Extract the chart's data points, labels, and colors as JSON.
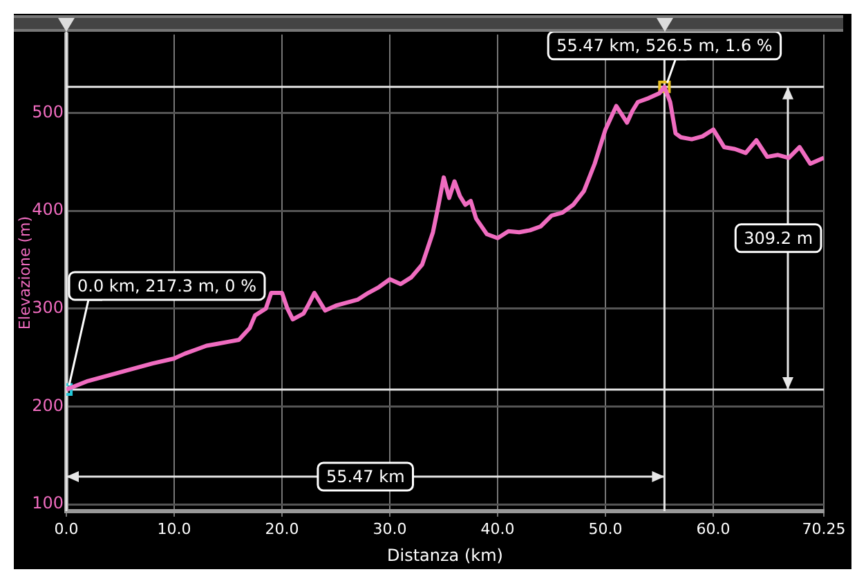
{
  "chart_data": {
    "type": "line",
    "xlabel": "Distanza (km)",
    "ylabel": "Elevazione (m)",
    "xlim": [
      0,
      70.25
    ],
    "ylim": [
      93,
      580
    ],
    "xticks": [
      {
        "value": 0,
        "label": "0.0"
      },
      {
        "value": 10,
        "label": "10.0"
      },
      {
        "value": 20,
        "label": "20.0"
      },
      {
        "value": 30,
        "label": "30.0"
      },
      {
        "value": 40,
        "label": "40.0"
      },
      {
        "value": 50,
        "label": "50.0"
      },
      {
        "value": 60,
        "label": "60.0"
      },
      70.25
    ],
    "yticks": [
      100,
      200,
      300,
      400,
      500
    ],
    "grid": true,
    "legend": false,
    "marker": "none",
    "line_style": "solid",
    "series": [
      {
        "color": "#f06cc0",
        "x": [
          0,
          2,
          4,
          6,
          8,
          10,
          11,
          12,
          13,
          14,
          15,
          16,
          17,
          17.5,
          18.5,
          19,
          20,
          20.5,
          21,
          22,
          22.5,
          23,
          24,
          25,
          26,
          27,
          28,
          29,
          30,
          31,
          32,
          33,
          34,
          34.5,
          35,
          35.5,
          36,
          36.5,
          37,
          37.5,
          38,
          39,
          40,
          41,
          42,
          43,
          44,
          45,
          46,
          47,
          48,
          49,
          50,
          51,
          52,
          52.5,
          53,
          54,
          55,
          55.47,
          56,
          56.5,
          57,
          58,
          59,
          60,
          61,
          62,
          63,
          64,
          65,
          66,
          67,
          68,
          69,
          70.25
        ],
        "values": [
          217.3,
          226,
          232,
          238,
          244,
          249,
          254,
          258,
          262,
          264,
          266,
          268,
          280,
          293,
          300,
          316,
          316,
          300,
          289,
          295,
          305,
          316,
          298,
          303,
          306,
          309,
          316,
          322,
          330,
          325,
          332,
          345,
          378,
          405,
          434,
          413,
          430,
          415,
          406,
          410,
          392,
          376,
          372,
          379,
          378,
          380,
          384,
          395,
          398,
          406,
          420,
          448,
          483,
          507,
          490,
          502,
          511,
          515,
          520,
          526.5,
          511,
          479,
          475,
          473,
          476,
          483,
          465,
          463,
          459,
          472,
          455,
          457,
          454,
          465,
          448,
          454
        ]
      },
      {
        "type": "scatter",
        "x": [
          0,
          55.47
        ],
        "values": [
          217.3,
          526.5
        ],
        "colors": [
          "#22c8d8",
          "#e8c020"
        ],
        "marker": "square"
      }
    ],
    "ref_lines": [
      {
        "axis": "x",
        "value": 0
      },
      {
        "axis": "x",
        "value": 55.47
      },
      {
        "axis": "y",
        "value": 217.3
      },
      {
        "axis": "y",
        "value": 526.5
      }
    ],
    "annotations": [
      "55.47 km",
      "309.2 m",
      {
        "text": "0.0 km, 217.3 m, 0 %",
        "x": 0,
        "y": 217.3
      },
      {
        "text": "55.47 km, 526.5 m, 1.6 %",
        "x": 55.47,
        "y": 526.5
      }
    ]
  }
}
